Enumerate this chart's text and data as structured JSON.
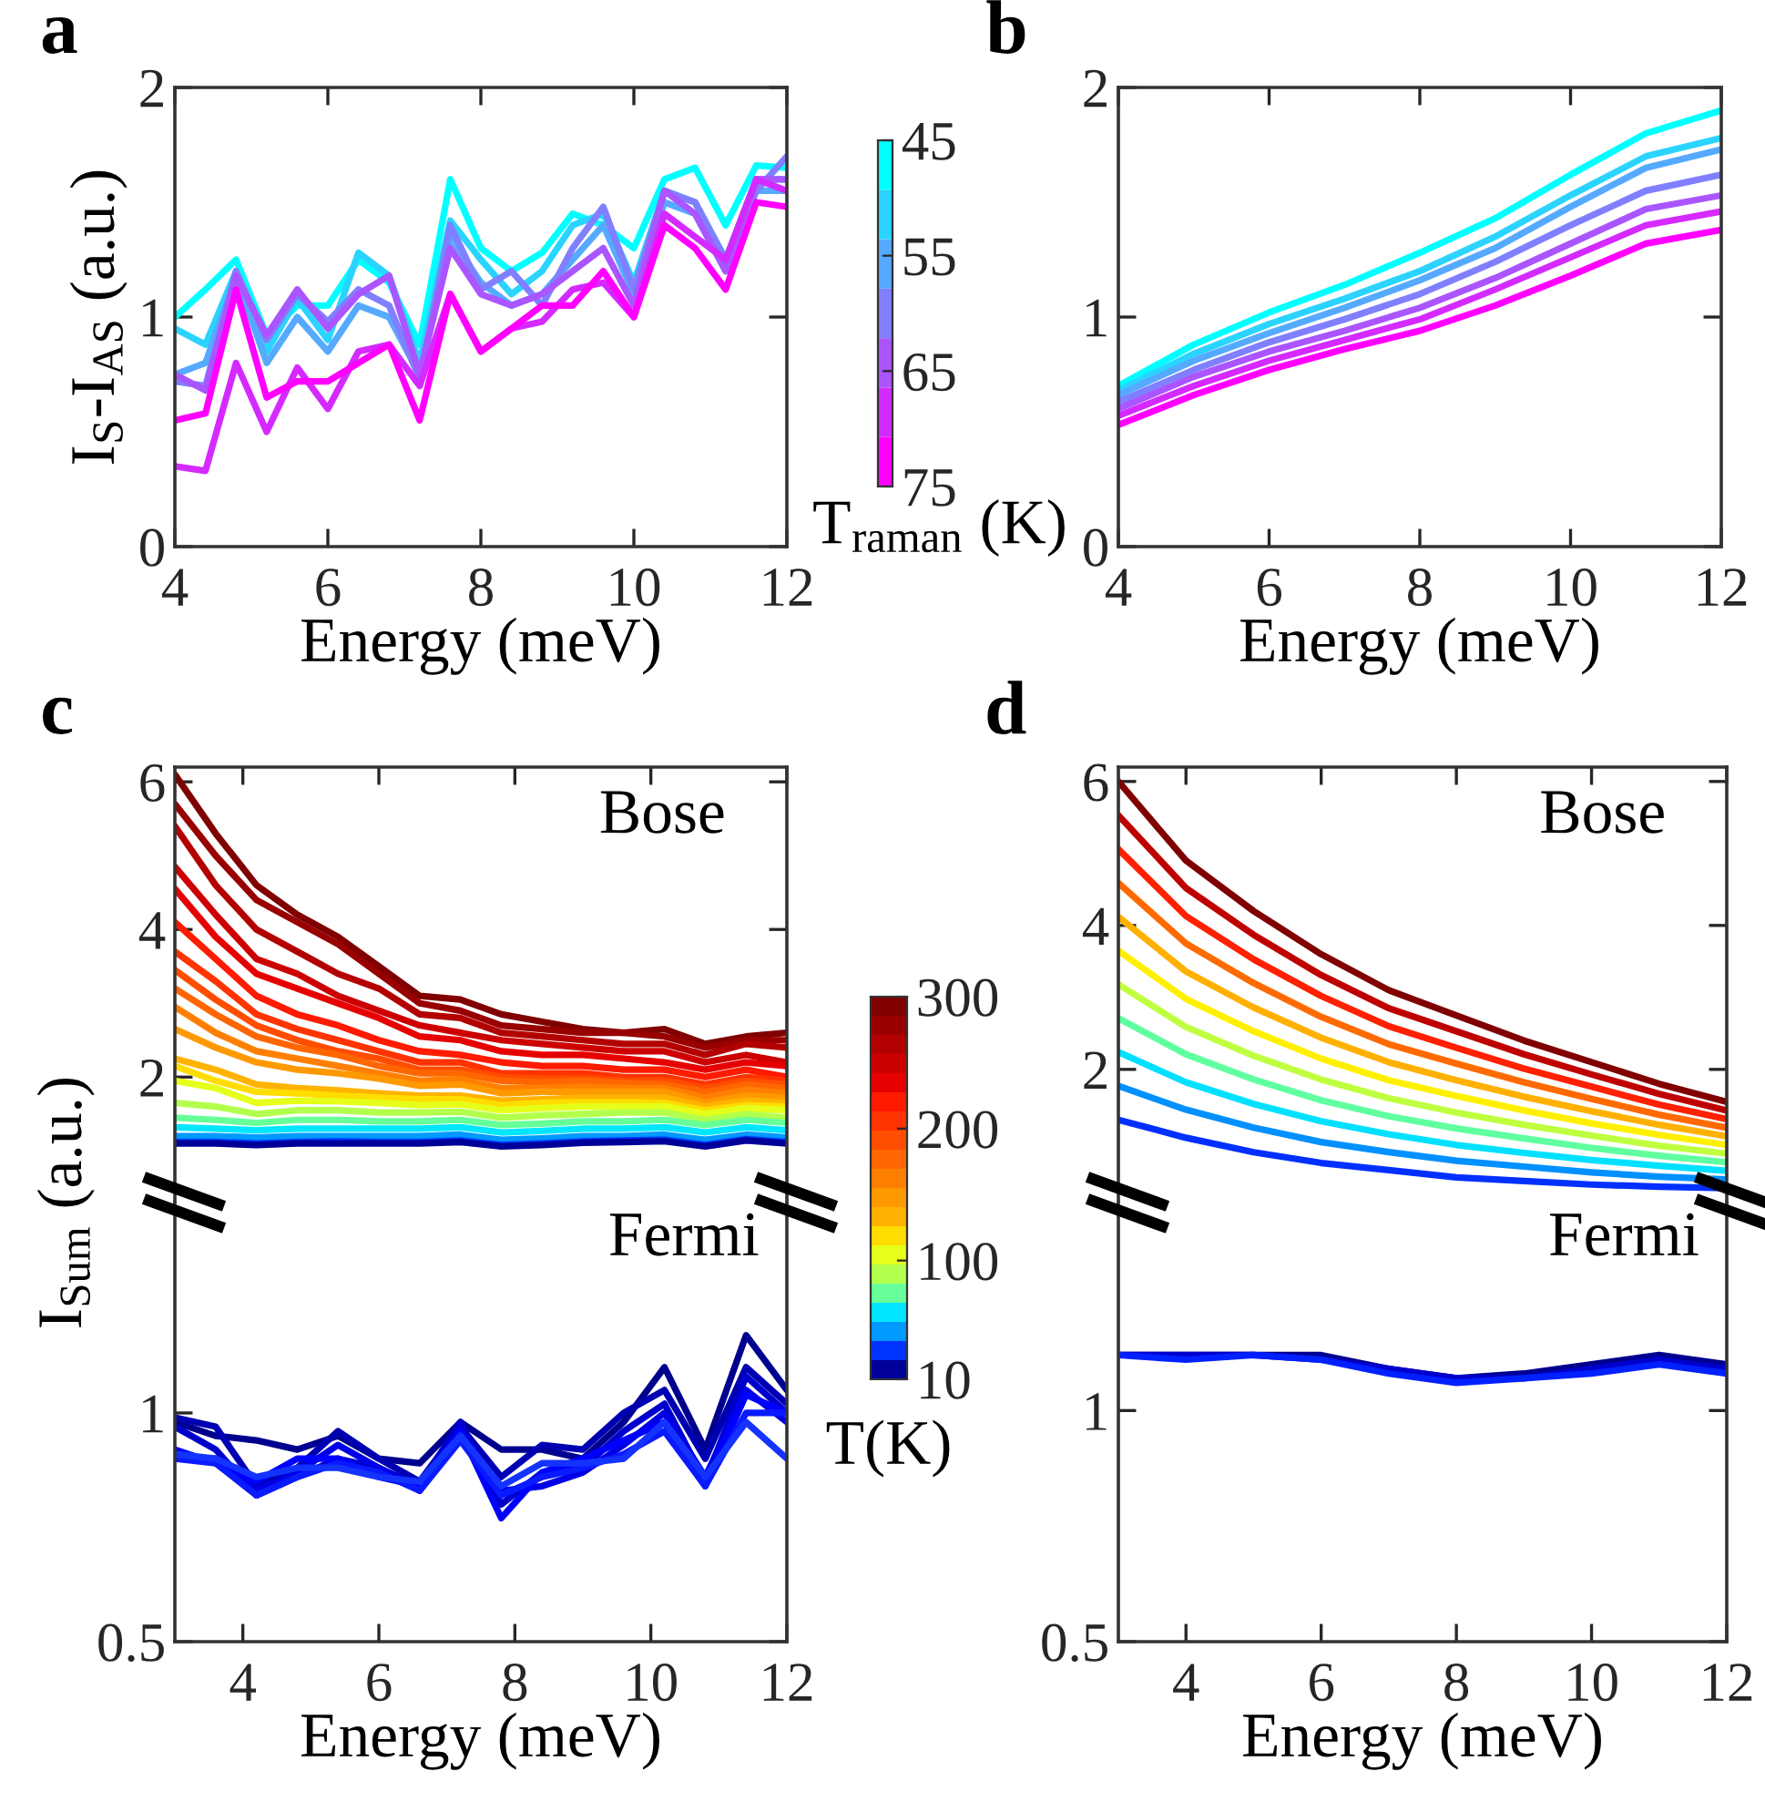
{
  "chart_data": [
    {
      "type": "line",
      "title": "a",
      "xlabel": "Energy (meV)",
      "ylabel": "I$_{S}$-I$_{AS}$ (a.u.)",
      "clabel": "T$_{raman}$ (K)",
      "clim": [
        75,
        45
      ],
      "cticks": [
        45,
        55,
        65,
        75
      ],
      "xlim": [
        4,
        12
      ],
      "ylim": [
        0,
        2
      ],
      "xticks": [
        4,
        6,
        8,
        10,
        12
      ],
      "yticks": [
        0,
        1,
        2
      ],
      "x": [
        4,
        4.4,
        4.8,
        5.2,
        5.6,
        6.0,
        6.4,
        6.8,
        7.2,
        7.6,
        8.0,
        8.4,
        8.8,
        9.2,
        9.6,
        10.0,
        10.4,
        10.8,
        11.2,
        11.6,
        12.0
      ],
      "series": [
        {
          "color": "#00ffff",
          "values": [
            1.0,
            1.12,
            1.25,
            0.92,
            1.05,
            1.05,
            1.25,
            1.15,
            0.88,
            1.6,
            1.3,
            1.2,
            1.28,
            1.45,
            1.4,
            1.3,
            1.6,
            1.65,
            1.4,
            1.66,
            1.65
          ]
        },
        {
          "color": "#2ad4ff",
          "values": [
            0.95,
            0.88,
            1.2,
            0.85,
            1.08,
            0.9,
            1.28,
            1.18,
            0.8,
            1.42,
            1.25,
            1.1,
            1.2,
            1.4,
            1.45,
            1.15,
            1.55,
            1.5,
            1.25,
            1.6,
            1.6
          ]
        },
        {
          "color": "#55aaff",
          "values": [
            0.75,
            0.8,
            1.18,
            0.8,
            1.0,
            0.85,
            1.05,
            1.0,
            0.75,
            1.35,
            1.15,
            1.05,
            1.1,
            1.25,
            1.4,
            1.1,
            1.5,
            1.45,
            1.2,
            1.55,
            1.55
          ]
        },
        {
          "color": "#807fff",
          "values": [
            0.72,
            0.7,
            1.2,
            0.9,
            1.1,
            0.98,
            1.12,
            1.05,
            0.73,
            1.4,
            1.12,
            1.2,
            1.05,
            1.3,
            1.48,
            1.12,
            1.55,
            1.5,
            1.25,
            1.55,
            1.7
          ]
        },
        {
          "color": "#aa55ff",
          "values": [
            0.75,
            0.68,
            1.18,
            0.92,
            1.12,
            0.95,
            1.1,
            1.18,
            0.75,
            1.3,
            1.1,
            1.05,
            1.1,
            1.2,
            1.3,
            1.05,
            1.55,
            1.45,
            1.2,
            1.6,
            1.6
          ]
        },
        {
          "color": "#d42aff",
          "values": [
            0.35,
            0.33,
            0.8,
            0.5,
            0.78,
            0.6,
            0.85,
            0.88,
            0.7,
            1.1,
            0.85,
            0.95,
            0.98,
            1.12,
            1.15,
            1.0,
            1.45,
            1.35,
            1.25,
            1.6,
            1.55
          ]
        },
        {
          "color": "#ff00ff",
          "values": [
            0.55,
            0.58,
            1.12,
            0.65,
            0.72,
            0.72,
            0.8,
            0.88,
            0.55,
            1.1,
            0.85,
            0.95,
            1.05,
            1.05,
            1.2,
            1.0,
            1.4,
            1.3,
            1.12,
            1.5,
            1.48
          ]
        }
      ]
    },
    {
      "type": "line",
      "title": "b",
      "xlabel": "Energy (meV)",
      "xlim": [
        4,
        12
      ],
      "ylim": [
        0,
        2
      ],
      "xticks": [
        4,
        6,
        8,
        10,
        12
      ],
      "yticks": [
        0,
        1,
        2
      ],
      "x": [
        4,
        5,
        6,
        7,
        8,
        9,
        10,
        11,
        12
      ],
      "series": [
        {
          "color": "#00ffff",
          "values": [
            0.7,
            0.88,
            1.02,
            1.14,
            1.28,
            1.43,
            1.62,
            1.8,
            1.9
          ]
        },
        {
          "color": "#2ad4ff",
          "values": [
            0.68,
            0.84,
            0.97,
            1.08,
            1.2,
            1.35,
            1.53,
            1.7,
            1.78
          ]
        },
        {
          "color": "#55aaff",
          "values": [
            0.66,
            0.81,
            0.93,
            1.04,
            1.16,
            1.3,
            1.48,
            1.65,
            1.73
          ]
        },
        {
          "color": "#807fff",
          "values": [
            0.63,
            0.77,
            0.89,
            0.99,
            1.1,
            1.24,
            1.4,
            1.55,
            1.62
          ]
        },
        {
          "color": "#aa55ff",
          "values": [
            0.6,
            0.74,
            0.85,
            0.94,
            1.04,
            1.17,
            1.32,
            1.47,
            1.53
          ]
        },
        {
          "color": "#d42aff",
          "values": [
            0.57,
            0.7,
            0.81,
            0.9,
            0.99,
            1.12,
            1.26,
            1.4,
            1.46
          ]
        },
        {
          "color": "#ff00ff",
          "values": [
            0.53,
            0.66,
            0.77,
            0.86,
            0.94,
            1.05,
            1.18,
            1.32,
            1.38
          ]
        }
      ]
    },
    {
      "type": "line",
      "title": "c",
      "ylabel": "I$_{Sum}$ (a.u.)",
      "annotations": [
        "Bose"
      ],
      "clabel": "T(K)",
      "clim": [
        10,
        300
      ],
      "cticks": [
        10,
        100,
        200,
        300
      ],
      "xlim": [
        3,
        12
      ],
      "ylim": [
        0.3,
        6.2
      ],
      "xticks": [
        4,
        6,
        8,
        10,
        12
      ],
      "yticks": [
        2,
        4,
        6
      ],
      "tick_labels": "y",
      "x": [
        3,
        3.6,
        4.2,
        4.8,
        5.4,
        6.0,
        6.6,
        7.2,
        7.8,
        8.4,
        9.0,
        9.6,
        10.2,
        10.8,
        11.4,
        12.0
      ],
      "series": [
        {
          "color": "#800000",
          "values": [
            6.1,
            5.3,
            4.6,
            4.2,
            3.9,
            3.5,
            3.1,
            3.05,
            2.85,
            2.75,
            2.65,
            2.6,
            2.65,
            2.45,
            2.55,
            2.6
          ]
        },
        {
          "color": "#990000",
          "values": [
            5.7,
            5.0,
            4.4,
            4.1,
            3.8,
            3.4,
            3.0,
            2.9,
            2.7,
            2.65,
            2.6,
            2.6,
            2.55,
            2.4,
            2.5,
            2.5
          ]
        },
        {
          "color": "#b30000",
          "values": [
            5.4,
            4.6,
            4.0,
            3.7,
            3.4,
            3.2,
            2.85,
            2.8,
            2.6,
            2.55,
            2.5,
            2.45,
            2.45,
            2.3,
            2.45,
            2.4
          ]
        },
        {
          "color": "#cc0000",
          "values": [
            4.85,
            4.2,
            3.6,
            3.4,
            3.1,
            2.9,
            2.7,
            2.6,
            2.5,
            2.45,
            2.4,
            2.35,
            2.35,
            2.2,
            2.3,
            2.2
          ]
        },
        {
          "color": "#e60000",
          "values": [
            4.55,
            3.9,
            3.4,
            3.2,
            3.0,
            2.8,
            2.55,
            2.5,
            2.35,
            2.3,
            2.3,
            2.25,
            2.2,
            2.1,
            2.2,
            2.15
          ]
        },
        {
          "color": "#ff1a00",
          "values": [
            4.1,
            3.6,
            3.1,
            2.85,
            2.7,
            2.5,
            2.35,
            2.3,
            2.2,
            2.15,
            2.15,
            2.1,
            2.1,
            2.0,
            2.1,
            2.0
          ]
        },
        {
          "color": "#ff3300",
          "values": [
            3.7,
            3.3,
            2.85,
            2.65,
            2.5,
            2.35,
            2.2,
            2.2,
            2.05,
            2.05,
            2.05,
            2.0,
            2.0,
            1.9,
            2.0,
            1.95
          ]
        },
        {
          "color": "#ff4d00",
          "values": [
            3.45,
            3.05,
            2.7,
            2.5,
            2.35,
            2.25,
            2.1,
            2.1,
            2.0,
            1.98,
            1.98,
            1.95,
            1.95,
            1.85,
            1.95,
            1.9
          ]
        },
        {
          "color": "#ff6600",
          "values": [
            3.2,
            2.85,
            2.55,
            2.4,
            2.3,
            2.15,
            2.05,
            2.05,
            1.95,
            1.93,
            1.95,
            1.92,
            1.9,
            1.8,
            1.9,
            1.85
          ]
        },
        {
          "color": "#ff8000",
          "values": [
            2.95,
            2.6,
            2.35,
            2.25,
            2.15,
            2.05,
            1.95,
            1.97,
            1.85,
            1.85,
            1.87,
            1.85,
            1.85,
            1.72,
            1.83,
            1.78
          ]
        },
        {
          "color": "#ff9900",
          "values": [
            2.65,
            2.4,
            2.2,
            2.1,
            2.05,
            1.98,
            1.88,
            1.9,
            1.78,
            1.8,
            1.8,
            1.8,
            1.8,
            1.65,
            1.75,
            1.72
          ]
        },
        {
          "color": "#ffb300",
          "values": [
            2.25,
            2.1,
            1.9,
            1.85,
            1.82,
            1.78,
            1.75,
            1.75,
            1.68,
            1.7,
            1.72,
            1.72,
            1.72,
            1.6,
            1.68,
            1.65
          ]
        },
        {
          "color": "#ffdd00",
          "values": [
            2.15,
            1.95,
            1.8,
            1.78,
            1.75,
            1.72,
            1.7,
            1.7,
            1.62,
            1.65,
            1.66,
            1.66,
            1.65,
            1.55,
            1.62,
            1.6
          ]
        },
        {
          "color": "#e6ff1a",
          "values": [
            1.95,
            1.85,
            1.65,
            1.68,
            1.67,
            1.65,
            1.62,
            1.63,
            1.55,
            1.58,
            1.6,
            1.6,
            1.6,
            1.5,
            1.58,
            1.55
          ]
        },
        {
          "color": "#b3ff4d",
          "values": [
            1.65,
            1.6,
            1.5,
            1.55,
            1.55,
            1.52,
            1.52,
            1.53,
            1.45,
            1.48,
            1.5,
            1.52,
            1.52,
            1.42,
            1.5,
            1.45
          ]
        },
        {
          "color": "#66ff99",
          "values": [
            1.45,
            1.42,
            1.38,
            1.42,
            1.42,
            1.4,
            1.4,
            1.42,
            1.35,
            1.37,
            1.4,
            1.4,
            1.42,
            1.35,
            1.42,
            1.38
          ]
        },
        {
          "color": "#00e6ff",
          "values": [
            1.32,
            1.3,
            1.28,
            1.3,
            1.3,
            1.3,
            1.3,
            1.32,
            1.25,
            1.27,
            1.3,
            1.3,
            1.32,
            1.25,
            1.32,
            1.28
          ]
        },
        {
          "color": "#0099ff",
          "values": [
            1.2,
            1.2,
            1.18,
            1.2,
            1.2,
            1.2,
            1.2,
            1.22,
            1.15,
            1.17,
            1.2,
            1.2,
            1.22,
            1.15,
            1.22,
            1.18
          ]
        },
        {
          "color": "#0033ff",
          "values": [
            1.12,
            1.12,
            1.1,
            1.12,
            1.13,
            1.12,
            1.12,
            1.14,
            1.08,
            1.1,
            1.13,
            1.14,
            1.15,
            1.08,
            1.16,
            1.12
          ]
        },
        {
          "color": "#000099",
          "values": [
            1.1,
            1.1,
            1.08,
            1.1,
            1.1,
            1.1,
            1.1,
            1.12,
            1.06,
            1.08,
            1.11,
            1.12,
            1.13,
            1.06,
            1.14,
            1.1
          ]
        }
      ]
    },
    {
      "type": "line",
      "xlabel": "Energy (meV)",
      "annotations": [
        "Fermi"
      ],
      "xlim": [
        3,
        12
      ],
      "ylim": [
        0.5,
        1.46
      ],
      "xticks": [
        4,
        6,
        8,
        10,
        12
      ],
      "yticks": [
        0.5,
        1
      ],
      "x": [
        3,
        3.6,
        4.2,
        4.8,
        5.4,
        6.0,
        6.6,
        7.2,
        7.8,
        8.4,
        9.0,
        9.6,
        10.2,
        10.8,
        11.4,
        12.0
      ],
      "series": [
        {
          "color": "#00008f",
          "values": [
            0.98,
            0.95,
            0.94,
            0.92,
            0.95,
            0.9,
            0.89,
            0.98,
            0.92,
            0.92,
            0.9,
            0.98,
            1.1,
            0.92,
            1.17,
            1.05
          ]
        },
        {
          "color": "#0000b3",
          "values": [
            0.99,
            0.97,
            0.84,
            0.88,
            0.96,
            0.9,
            0.85,
            0.97,
            0.86,
            0.93,
            0.92,
            1.0,
            1.05,
            0.9,
            1.1,
            1.02
          ]
        },
        {
          "color": "#0000cc",
          "values": [
            0.97,
            0.92,
            0.82,
            0.86,
            0.9,
            0.88,
            0.84,
            0.98,
            0.8,
            0.87,
            0.88,
            0.96,
            1.02,
            0.85,
            1.08,
            1.0
          ]
        },
        {
          "color": "#0000e6",
          "values": [
            0.9,
            0.9,
            0.83,
            0.87,
            0.93,
            0.88,
            0.83,
            0.95,
            0.83,
            0.84,
            0.87,
            0.93,
            1.0,
            0.86,
            1.05,
            0.98
          ]
        },
        {
          "color": "#0000ff",
          "values": [
            0.92,
            0.89,
            0.85,
            0.9,
            0.9,
            0.86,
            0.84,
            0.96,
            0.77,
            0.87,
            0.9,
            0.94,
            0.98,
            0.84,
            1.04,
            1.0
          ]
        },
        {
          "color": "#0a1aff",
          "values": [
            0.9,
            0.89,
            0.82,
            0.86,
            0.89,
            0.87,
            0.83,
            0.94,
            0.82,
            0.86,
            0.88,
            0.91,
            0.96,
            0.84,
            1.0,
            1.0
          ]
        },
        {
          "color": "#1433ff",
          "values": [
            0.91,
            0.9,
            0.86,
            0.88,
            0.88,
            0.86,
            0.85,
            0.95,
            0.84,
            0.89,
            0.89,
            0.9,
            0.98,
            0.86,
            0.98,
            0.9
          ]
        }
      ]
    },
    {
      "type": "line",
      "title": "d",
      "annotations": [
        "Bose"
      ],
      "xlim": [
        3,
        12
      ],
      "ylim": [
        0.15,
        6.2
      ],
      "xticks": [
        4,
        6,
        8,
        10,
        12
      ],
      "yticks": [
        2,
        4,
        6
      ],
      "tick_labels": "y",
      "x": [
        3,
        4,
        5,
        6,
        7,
        8,
        9,
        10,
        11,
        12
      ],
      "series": [
        {
          "color": "#800000",
          "values": [
            6.0,
            4.9,
            4.2,
            3.6,
            3.1,
            2.75,
            2.4,
            2.1,
            1.8,
            1.55
          ]
        },
        {
          "color": "#bf0000",
          "values": [
            5.53,
            4.52,
            3.87,
            3.31,
            2.85,
            2.53,
            2.21,
            1.93,
            1.66,
            1.43
          ]
        },
        {
          "color": "#ff2000",
          "values": [
            5.06,
            4.13,
            3.53,
            3.02,
            2.6,
            2.3,
            2.01,
            1.76,
            1.51,
            1.31
          ]
        },
        {
          "color": "#ff6a00",
          "values": [
            4.59,
            3.75,
            3.2,
            2.73,
            2.35,
            2.08,
            1.82,
            1.59,
            1.37,
            1.19
          ]
        },
        {
          "color": "#ffb000",
          "values": [
            4.12,
            3.36,
            2.86,
            2.44,
            2.1,
            1.85,
            1.62,
            1.42,
            1.23,
            1.07
          ]
        },
        {
          "color": "#fff000",
          "values": [
            3.65,
            2.98,
            2.53,
            2.15,
            1.85,
            1.63,
            1.43,
            1.25,
            1.09,
            0.95
          ]
        },
        {
          "color": "#bfff40",
          "values": [
            3.18,
            2.59,
            2.19,
            1.86,
            1.6,
            1.4,
            1.23,
            1.08,
            0.94,
            0.83
          ]
        },
        {
          "color": "#60ffa0",
          "values": [
            2.71,
            2.21,
            1.86,
            1.57,
            1.35,
            1.18,
            1.04,
            0.91,
            0.8,
            0.71
          ]
        },
        {
          "color": "#00e0ff",
          "values": [
            2.24,
            1.82,
            1.52,
            1.28,
            1.1,
            0.95,
            0.84,
            0.74,
            0.66,
            0.59
          ]
        },
        {
          "color": "#0090ff",
          "values": [
            1.77,
            1.44,
            1.19,
            0.99,
            0.85,
            0.73,
            0.65,
            0.57,
            0.51,
            0.47
          ]
        },
        {
          "color": "#0030ff",
          "values": [
            1.3,
            1.05,
            0.85,
            0.7,
            0.6,
            0.5,
            0.45,
            0.4,
            0.37,
            0.35
          ]
        }
      ]
    },
    {
      "type": "line",
      "xlabel": "Energy (meV)",
      "annotations": [
        "Fermi"
      ],
      "xlim": [
        3,
        12
      ],
      "ylim": [
        0.5,
        1.45
      ],
      "xticks": [
        4,
        6,
        8,
        10,
        12
      ],
      "yticks": [
        0.5,
        1
      ],
      "x": [
        3,
        4,
        5,
        6,
        7,
        8,
        9,
        10,
        11,
        12
      ],
      "series": [
        {
          "color": "#00008f",
          "values": [
            1.12,
            1.12,
            1.12,
            1.12,
            1.09,
            1.07,
            1.08,
            1.1,
            1.12,
            1.1
          ]
        },
        {
          "color": "#0000cc",
          "values": [
            1.12,
            1.12,
            1.12,
            1.11,
            1.09,
            1.07,
            1.07,
            1.09,
            1.11,
            1.09
          ]
        },
        {
          "color": "#0020ff",
          "values": [
            1.12,
            1.11,
            1.12,
            1.11,
            1.08,
            1.06,
            1.07,
            1.08,
            1.1,
            1.08
          ]
        }
      ]
    }
  ]
}
